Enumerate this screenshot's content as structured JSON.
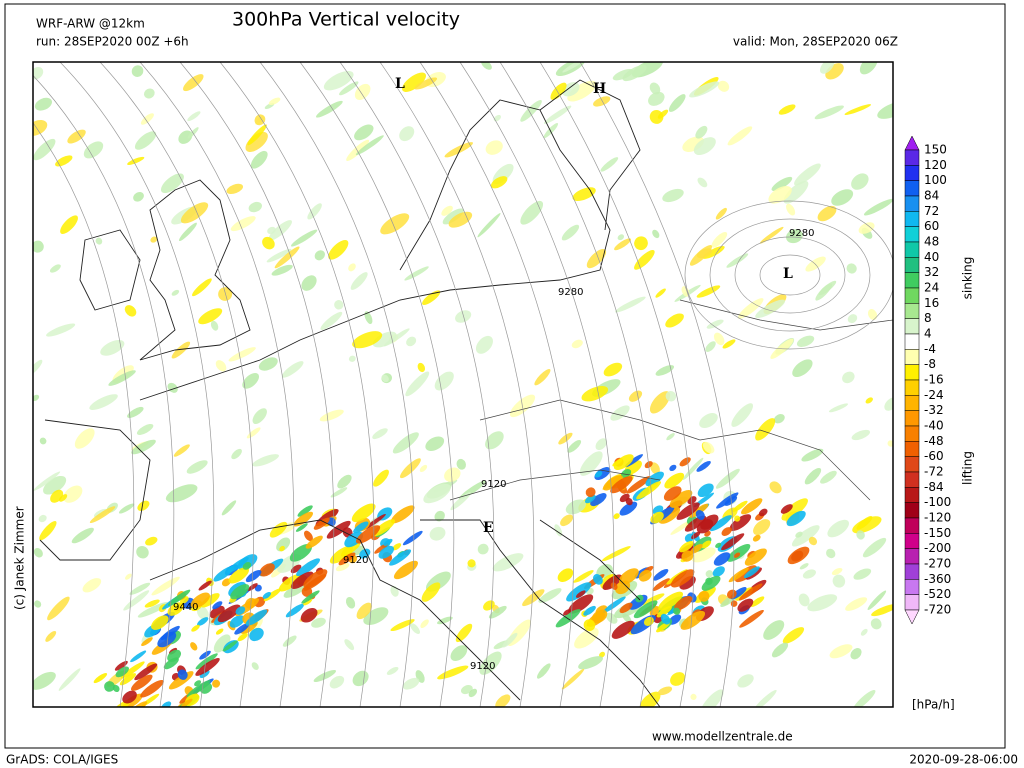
{
  "header": {
    "model": "WRF-ARW @12km",
    "run": "run: 28SEP2020 00Z +6h",
    "title": "300hPa Vertical velocity",
    "valid": "valid: Mon, 28SEP2020 06Z"
  },
  "map_labels": [
    "L",
    "H",
    "9280",
    "L",
    "9280",
    "9120",
    "E",
    "9120",
    "9440",
    "9120"
  ],
  "colorbar": {
    "levels": [
      150,
      120,
      100,
      84,
      72,
      60,
      48,
      40,
      32,
      24,
      16,
      8,
      4,
      -4,
      -8,
      -16,
      -24,
      -32,
      -40,
      -48,
      -60,
      -72,
      -84,
      -100,
      -120,
      -150,
      -200,
      -270,
      -360,
      -520,
      -720
    ],
    "colors": [
      "#a020f0",
      "#5a28e6",
      "#2030f0",
      "#1060f0",
      "#1890f0",
      "#10b8f0",
      "#10d0d8",
      "#10c8a8",
      "#20c080",
      "#40cc60",
      "#70d860",
      "#a8e890",
      "#d8f4cc",
      "#ffffff",
      "#ffffb0",
      "#fff000",
      "#ffd000",
      "#ffb400",
      "#ff9800",
      "#f88000",
      "#f06000",
      "#e04818",
      "#d03020",
      "#b81818",
      "#a00018",
      "#c0005a",
      "#d0008a",
      "#b820b0",
      "#a040d8",
      "#c878f0",
      "#f0b8f8",
      "#ffd8ff"
    ],
    "upper_label": "sinking",
    "lower_label": "lifting",
    "unit": "[hPa/h]"
  },
  "footer": {
    "credit": "(c) Janek Zimmer",
    "software": "GrADS: COLA/IGES",
    "url": "www.modellzentrale.de",
    "timestamp": "2020-09-28-06:00"
  }
}
